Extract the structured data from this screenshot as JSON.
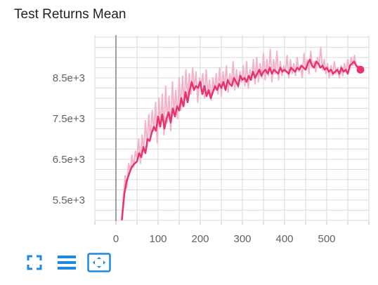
{
  "title": "Test Returns Mean",
  "colors": {
    "smoothed": "#e8336d",
    "raw": "#f5b3c8",
    "grid": "#dadada",
    "zero_line": "#9e9e9e",
    "accent": "#1e88e5"
  },
  "toolbar": {
    "fullscreen_icon": "fullscreen-icon",
    "data_table_icon": "data-table-icon",
    "fit_domain_icon": "fit-domain-icon"
  },
  "chart_data": {
    "type": "line",
    "title": "Test Returns Mean",
    "xlabel": "",
    "ylabel": "",
    "xlim": [
      -50,
      600
    ],
    "ylim": [
      4980,
      9550
    ],
    "x_ticks": [
      0,
      100,
      200,
      300,
      400,
      500
    ],
    "x_tick_labels": [
      "0",
      "100",
      "200",
      "300",
      "400",
      "500"
    ],
    "y_ticks": [
      5500,
      6500,
      7500,
      8500
    ],
    "y_tick_labels": [
      "5.5e+3",
      "6.5e+3",
      "7.5e+3",
      "8.5e+3"
    ],
    "grid": true,
    "legend": "none",
    "series": [
      {
        "x": [
          14,
          20,
          25,
          30,
          35,
          40,
          45,
          50,
          55,
          60,
          65,
          70,
          75,
          80,
          85,
          90,
          95,
          100,
          105,
          110,
          115,
          120,
          125,
          130,
          135,
          140,
          145,
          150,
          155,
          160,
          165,
          170,
          175,
          180,
          185,
          190,
          195,
          200,
          205,
          210,
          215,
          220,
          225,
          230,
          235,
          240,
          245,
          250,
          255,
          260,
          265,
          270,
          275,
          280,
          285,
          290,
          295,
          300,
          305,
          310,
          315,
          320,
          325,
          330,
          335,
          340,
          345,
          350,
          355,
          360,
          365,
          370,
          375,
          380,
          385,
          390,
          395,
          400,
          405,
          410,
          415,
          420,
          425,
          430,
          435,
          440,
          445,
          450,
          455,
          460,
          465,
          470,
          475,
          480,
          485,
          490,
          495,
          500,
          505,
          510,
          515,
          520,
          525,
          530,
          535,
          540,
          545,
          550,
          555,
          560,
          565,
          570,
          575,
          580
        ],
        "values": [
          5000,
          5650,
          5950,
          6100,
          6250,
          6350,
          6400,
          6450,
          6650,
          6550,
          6800,
          6650,
          7000,
          6950,
          7150,
          7300,
          7200,
          7550,
          7300,
          7600,
          7250,
          7500,
          7650,
          7400,
          7750,
          7550,
          7800,
          7700,
          8000,
          7800,
          8150,
          7900,
          8200,
          8400,
          8200,
          8300,
          8250,
          8400,
          8100,
          8300,
          8050,
          8200,
          8000,
          8150,
          8300,
          8200,
          8350,
          8250,
          8400,
          8200,
          8450,
          8350,
          8300,
          8500,
          8400,
          8300,
          8550,
          8450,
          8500,
          8400,
          8550,
          8450,
          8650,
          8500,
          8600,
          8700,
          8550,
          8650,
          8700,
          8600,
          8750,
          8600,
          8700,
          8650,
          8600,
          8750,
          8650,
          8700,
          8650,
          8600,
          8750,
          8700,
          8650,
          8750,
          8700,
          8800,
          8750,
          8700,
          8850,
          8950,
          8800,
          8750,
          8900,
          8850,
          8750,
          8800,
          8700,
          8750,
          8650,
          8700,
          8600,
          8650,
          8700,
          8600,
          8750,
          8650,
          8700,
          8600,
          8800,
          8850,
          8900,
          8800,
          8750,
          8700
        ]
      },
      {
        "x": [
          14,
          18,
          22,
          26,
          30,
          34,
          38,
          42,
          46,
          50,
          54,
          58,
          62,
          66,
          70,
          74,
          78,
          82,
          86,
          90,
          94,
          98,
          102,
          106,
          110,
          114,
          118,
          122,
          126,
          130,
          134,
          138,
          142,
          146,
          150,
          154,
          158,
          162,
          166,
          170,
          174,
          178,
          182,
          186,
          190,
          194,
          198,
          202,
          206,
          210,
          214,
          218,
          222,
          226,
          230,
          234,
          238,
          242,
          246,
          250,
          254,
          258,
          262,
          266,
          270,
          274,
          278,
          282,
          286,
          290,
          294,
          298,
          302,
          306,
          310,
          314,
          318,
          322,
          326,
          330,
          334,
          338,
          342,
          346,
          350,
          354,
          358,
          362,
          366,
          370,
          374,
          378,
          382,
          386,
          390,
          394,
          398,
          402,
          406,
          410,
          414,
          418,
          422,
          426,
          430,
          434,
          438,
          442,
          446,
          450,
          454,
          458,
          462,
          466,
          470,
          474,
          478,
          482,
          486,
          490,
          494,
          498,
          502,
          506,
          510,
          514,
          518,
          522,
          526,
          530,
          534,
          538,
          542,
          546,
          550,
          554,
          558,
          562,
          566,
          570,
          574,
          578
        ],
        "values": [
          5050,
          5600,
          6100,
          5800,
          6400,
          6200,
          6600,
          6300,
          6700,
          6500,
          7000,
          6400,
          7100,
          6700,
          7450,
          6800,
          7600,
          7000,
          7700,
          7200,
          7900,
          6900,
          8000,
          7300,
          8100,
          7100,
          8300,
          7400,
          8050,
          7200,
          8400,
          7600,
          8200,
          7500,
          8500,
          7700,
          8550,
          7800,
          8700,
          8000,
          8600,
          8100,
          8750,
          8200,
          8650,
          7900,
          8500,
          8300,
          8600,
          8000,
          8700,
          8100,
          8450,
          7950,
          8500,
          8200,
          8600,
          8100,
          8750,
          8050,
          8650,
          8300,
          8800,
          8150,
          8600,
          8350,
          8900,
          8200,
          8700,
          8250,
          8650,
          8400,
          8800,
          8300,
          8900,
          8250,
          8700,
          8450,
          8950,
          8350,
          9000,
          8400,
          8850,
          8500,
          9100,
          8450,
          8950,
          8550,
          9200,
          8400,
          8950,
          8600,
          9150,
          8450,
          8900,
          8550,
          8800,
          8650,
          9050,
          8500,
          8950,
          8600,
          8850,
          8550,
          9000,
          8650,
          8800,
          8500,
          9100,
          8700,
          8950,
          8600,
          9150,
          8750,
          8900,
          8650,
          9000,
          8800,
          9250,
          8700,
          8950,
          8600,
          8850,
          8500,
          8800,
          8550,
          8900,
          8600,
          8750,
          8500,
          8800,
          8550,
          8850,
          8650,
          8950,
          8700,
          9000,
          8800,
          9050,
          8750,
          8800,
          8700
        ]
      }
    ]
  }
}
